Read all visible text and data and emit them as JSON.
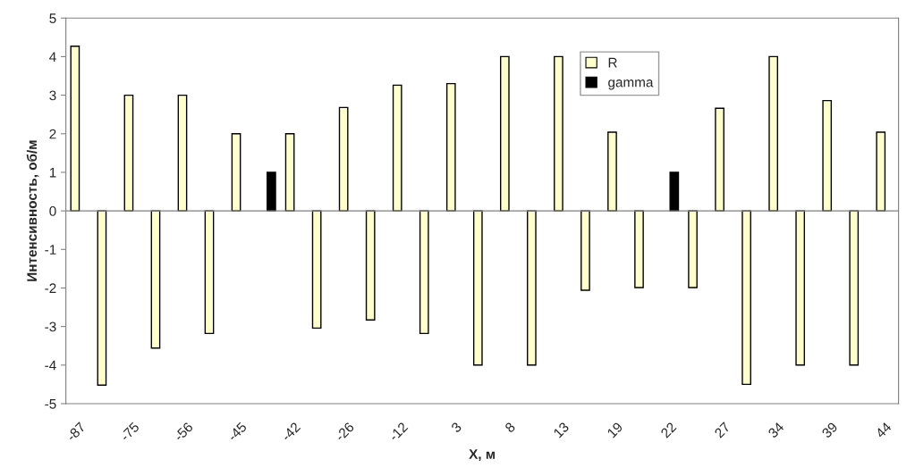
{
  "chart_data": {
    "type": "bar",
    "xlabel": "X, м",
    "ylabel": "Интенсивность, об/м",
    "categories": [
      "-87",
      null,
      "-75",
      null,
      "-56",
      null,
      "-45",
      null,
      "-42",
      null,
      "-26",
      null,
      "-12",
      null,
      "3",
      null,
      "8",
      null,
      "13",
      null,
      "19",
      null,
      "22",
      null,
      "27",
      null,
      "34",
      null,
      "39",
      null,
      "44"
    ],
    "series": [
      {
        "name": "R",
        "color": "#ffffcc",
        "values": [
          4.27,
          -4.52,
          3,
          -3.56,
          3,
          -3.18,
          2,
          null,
          2,
          -3.04,
          2.68,
          -2.83,
          3.26,
          -3.18,
          3.3,
          -4,
          4,
          -4,
          4,
          -2.06,
          2.04,
          -1.99,
          null,
          -1.99,
          2.66,
          -4.5,
          4,
          -4,
          2.86,
          -4,
          2.04
        ]
      },
      {
        "name": "gamma",
        "color": "#000000",
        "values": [
          null,
          null,
          null,
          null,
          null,
          null,
          null,
          1,
          null,
          null,
          null,
          null,
          null,
          null,
          null,
          null,
          null,
          null,
          null,
          null,
          null,
          null,
          1,
          null,
          null,
          null,
          null,
          null,
          null,
          null,
          null
        ]
      }
    ],
    "ylim": [
      -5,
      5
    ],
    "yticks": [
      -5,
      -4,
      -3,
      -2,
      -1,
      0,
      1,
      2,
      3,
      4,
      5
    ],
    "legend": "top"
  }
}
